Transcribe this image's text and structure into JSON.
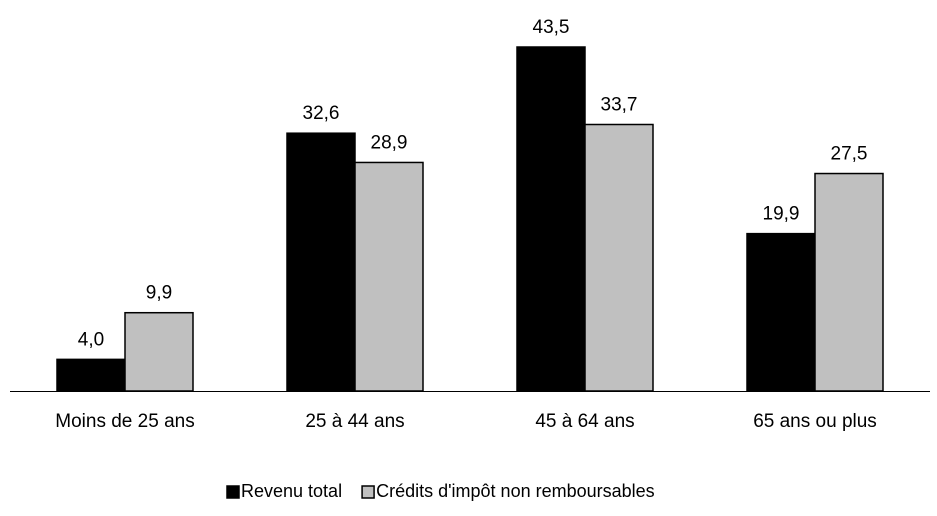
{
  "chart_data": {
    "type": "bar",
    "categories": [
      "Moins de 25 ans",
      "25 à 44 ans",
      "45 à 64 ans",
      "65 ans ou plus"
    ],
    "series": [
      {
        "name": "Revenu total",
        "values": [
          4.0,
          32.6,
          43.5,
          19.9
        ],
        "labels": [
          "4,0",
          "32,6",
          "43,5",
          "19,9"
        ],
        "color": "#000000"
      },
      {
        "name": "Crédits d'impôt non remboursables",
        "values": [
          9.9,
          28.9,
          33.7,
          27.5
        ],
        "labels": [
          "9,9",
          "28,9",
          "33,7",
          "27,5"
        ],
        "color": "#c0c0c0"
      }
    ],
    "ylim": [
      0,
      43.5
    ],
    "grid": false,
    "y_axis_visible": false,
    "legend": "bottom-center",
    "title": "",
    "xlabel": "",
    "ylabel": ""
  }
}
